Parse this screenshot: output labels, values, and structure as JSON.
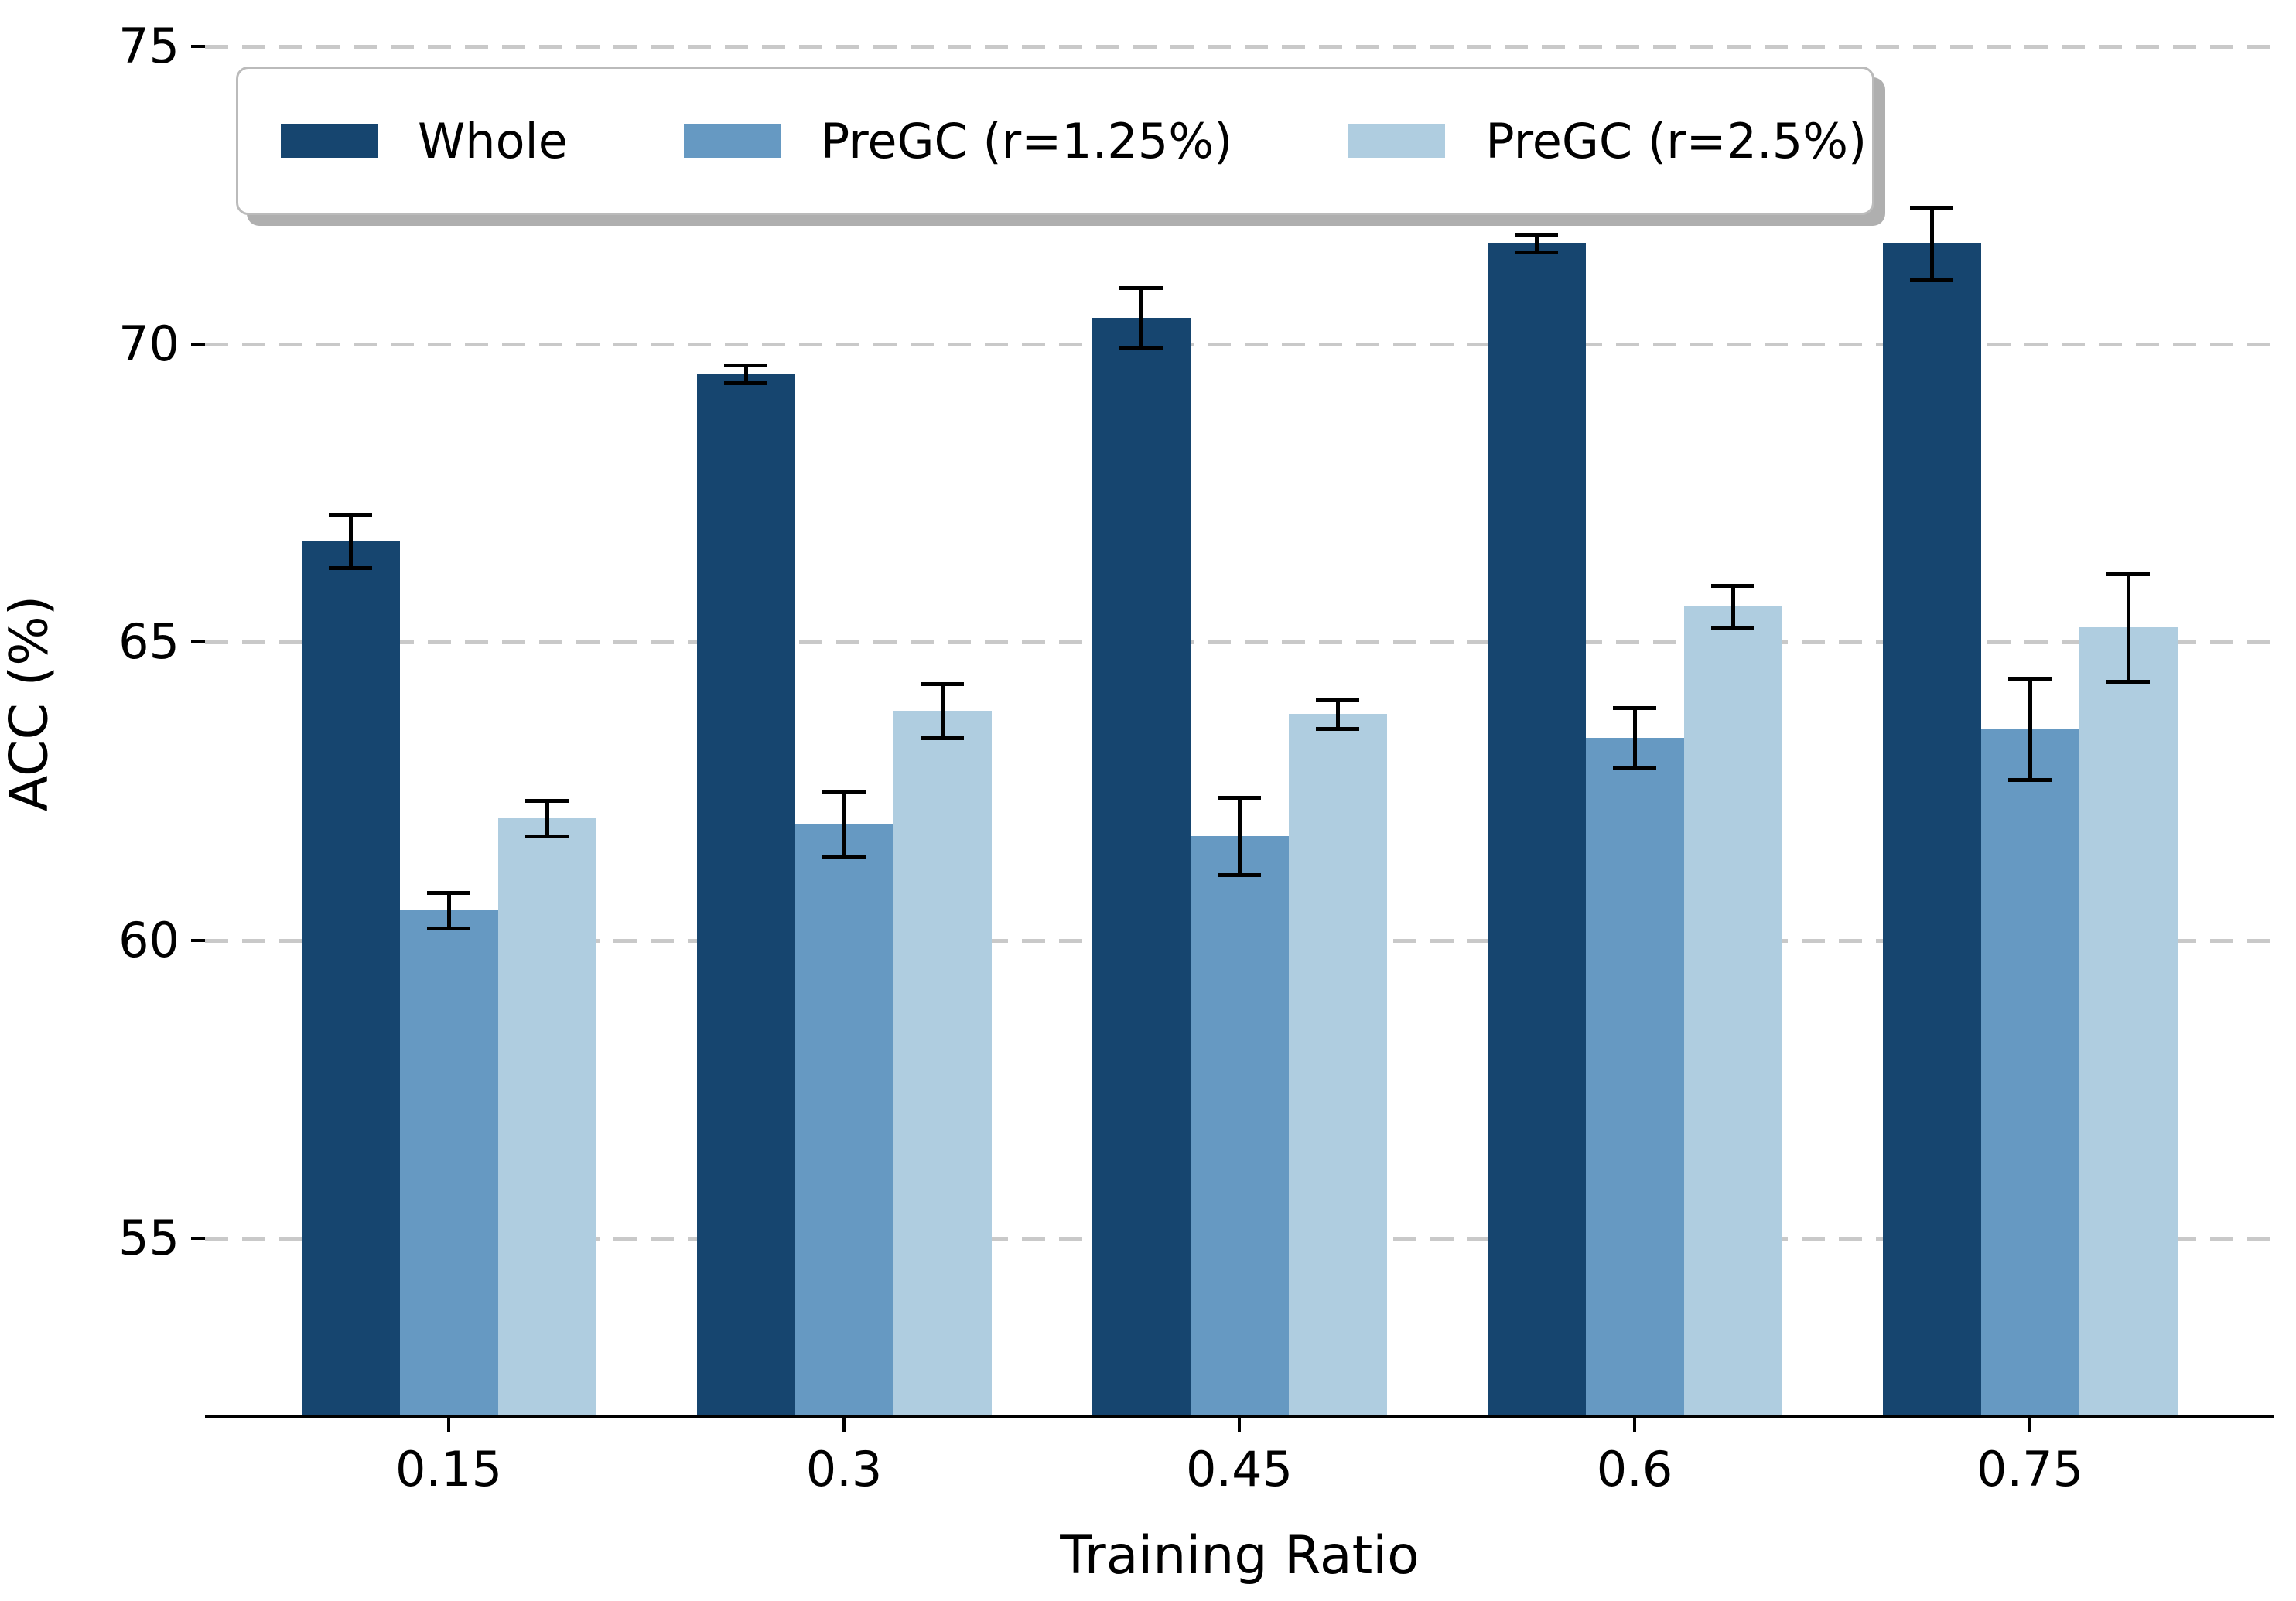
{
  "chart_data": {
    "type": "bar",
    "title": "",
    "xlabel": "Training Ratio",
    "ylabel": "ACC (%)",
    "categories": [
      "0.15",
      "0.3",
      "0.45",
      "0.6",
      "0.75"
    ],
    "series": [
      {
        "name": "Whole",
        "color": "#16456F",
        "values": [
          66.7,
          69.5,
          70.45,
          71.7,
          71.7
        ],
        "errors": [
          0.45,
          0.15,
          0.5,
          0.15,
          0.6
        ]
      },
      {
        "name": "PreGC (r=1.25%)",
        "color": "#6699C2",
        "values": [
          60.5,
          61.95,
          61.75,
          63.4,
          63.55
        ],
        "errors": [
          0.3,
          0.55,
          0.65,
          0.5,
          0.85
        ]
      },
      {
        "name": "PreGC (r=2.5%)",
        "color": "#AFCDE0",
        "values": [
          62.05,
          63.85,
          63.8,
          65.6,
          65.25
        ],
        "errors": [
          0.3,
          0.45,
          0.25,
          0.35,
          0.9
        ]
      }
    ],
    "yticks": [
      55,
      60,
      65,
      70,
      75
    ],
    "ylim": [
      52.0,
      75.78
    ],
    "grid": "horizontal dashed",
    "legend_position": "upper left, horizontal row",
    "error_bars": true
  },
  "style": {
    "background": "#FFFFFF",
    "grid_color": "#C9C9C9",
    "axis_color": "#000000",
    "errorbar_color": "#000000",
    "legend_border_color": "#BBBBBB",
    "legend_shadow_color": "#6E6E6E"
  }
}
